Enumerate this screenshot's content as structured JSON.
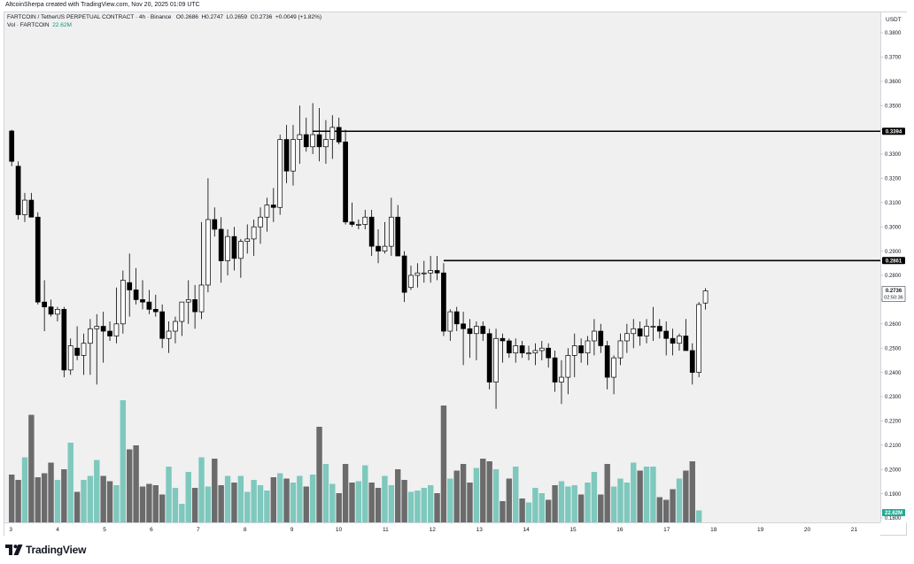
{
  "credit": "AltcoinSherpa created with TradingView.com, Nov 20, 2025 01:09 UTC",
  "legend": {
    "symbol": "FARTCOIN / TetherUS PERPETUAL CONTRACT · 4h · Binance",
    "open_label": "O",
    "open": "0.2686",
    "high_label": "H",
    "high": "0.2747",
    "low_label": "L",
    "low": "0.2659",
    "close_label": "C",
    "close": "0.2736",
    "change": "+0.0049 (+1.82%)",
    "vol_label": "Vol · FARTCOIN",
    "vol_value": "22.62M"
  },
  "price_axis_unit": "USDT",
  "brand": "TradingView",
  "chart_data": {
    "type": "candlestick",
    "symbol": "FARTCOIN / TetherUS PERPETUAL CONTRACT",
    "timeframe": "4h",
    "exchange": "Binance",
    "y_axis": {
      "unit": "USDT",
      "range": [
        0.18,
        0.385
      ],
      "ticks": [
        "0.3800",
        "0.3700",
        "0.3600",
        "0.3500",
        "0.3400",
        "0.3300",
        "0.3200",
        "0.3100",
        "0.3000",
        "0.2900",
        "0.2800",
        "0.2700",
        "0.2600",
        "0.2500",
        "0.2400",
        "0.2300",
        "0.2200",
        "0.2100",
        "0.2000",
        "0.1900",
        "0.1800"
      ]
    },
    "x_axis": {
      "ticks": [
        "3",
        "4",
        "5",
        "6",
        "7",
        "8",
        "9",
        "10",
        "11",
        "12",
        "13",
        "14",
        "15",
        "16",
        "17",
        "18",
        "19",
        "20",
        "21"
      ]
    },
    "horizontal_lines": [
      {
        "price": "0.3394",
        "from_bar": 46
      },
      {
        "price": "0.2861",
        "from_bar": 66
      }
    ],
    "labels": {
      "line1": "0.3394",
      "line2": "0.2861",
      "last_price": "0.2736",
      "countdown": "02:50:36",
      "volume_last": "22.62M"
    },
    "colors": {
      "up": "#ffffff",
      "down": "#000000",
      "vol_up": "#7ec8bd",
      "vol_down": "#6b6b6b"
    },
    "grid": false,
    "candles": [
      [
        0.3395,
        0.34,
        0.325,
        0.327
      ],
      [
        0.325,
        0.327,
        0.303,
        0.305
      ],
      [
        0.305,
        0.314,
        0.302,
        0.311
      ],
      [
        0.311,
        0.314,
        0.304,
        0.304
      ],
      [
        0.304,
        0.306,
        0.268,
        0.269
      ],
      [
        0.269,
        0.278,
        0.257,
        0.267
      ],
      [
        0.267,
        0.27,
        0.263,
        0.264
      ],
      [
        0.264,
        0.267,
        0.261,
        0.266
      ],
      [
        0.266,
        0.267,
        0.238,
        0.241
      ],
      [
        0.241,
        0.254,
        0.239,
        0.251
      ],
      [
        0.25,
        0.259,
        0.245,
        0.247
      ],
      [
        0.247,
        0.256,
        0.239,
        0.252
      ],
      [
        0.252,
        0.262,
        0.239,
        0.258
      ],
      [
        0.258,
        0.264,
        0.235,
        0.259
      ],
      [
        0.259,
        0.265,
        0.244,
        0.257
      ],
      [
        0.257,
        0.261,
        0.253,
        0.255
      ],
      [
        0.255,
        0.275,
        0.252,
        0.26
      ],
      [
        0.26,
        0.282,
        0.256,
        0.278
      ],
      [
        0.277,
        0.289,
        0.263,
        0.274
      ],
      [
        0.274,
        0.283,
        0.268,
        0.27
      ],
      [
        0.27,
        0.278,
        0.266,
        0.269
      ],
      [
        0.269,
        0.274,
        0.264,
        0.266
      ],
      [
        0.266,
        0.272,
        0.263,
        0.265
      ],
      [
        0.265,
        0.268,
        0.25,
        0.254
      ],
      [
        0.254,
        0.261,
        0.248,
        0.257
      ],
      [
        0.257,
        0.263,
        0.252,
        0.261
      ],
      [
        0.261,
        0.267,
        0.255,
        0.269
      ],
      [
        0.269,
        0.278,
        0.26,
        0.27
      ],
      [
        0.27,
        0.276,
        0.258,
        0.265
      ],
      [
        0.265,
        0.302,
        0.262,
        0.276
      ],
      [
        0.276,
        0.32,
        0.273,
        0.303
      ],
      [
        0.303,
        0.308,
        0.296,
        0.299
      ],
      [
        0.299,
        0.304,
        0.277,
        0.286
      ],
      [
        0.286,
        0.299,
        0.28,
        0.296
      ],
      [
        0.296,
        0.3,
        0.282,
        0.287
      ],
      [
        0.287,
        0.295,
        0.279,
        0.294
      ],
      [
        0.294,
        0.301,
        0.289,
        0.295
      ],
      [
        0.295,
        0.303,
        0.288,
        0.3
      ],
      [
        0.3,
        0.308,
        0.293,
        0.304
      ],
      [
        0.304,
        0.312,
        0.298,
        0.309
      ],
      [
        0.309,
        0.316,
        0.302,
        0.308
      ],
      [
        0.308,
        0.338,
        0.305,
        0.336
      ],
      [
        0.336,
        0.342,
        0.318,
        0.323
      ],
      [
        0.323,
        0.342,
        0.317,
        0.336
      ],
      [
        0.336,
        0.35,
        0.326,
        0.338
      ],
      [
        0.338,
        0.345,
        0.331,
        0.333
      ],
      [
        0.333,
        0.351,
        0.33,
        0.338
      ],
      [
        0.338,
        0.349,
        0.327,
        0.333
      ],
      [
        0.333,
        0.344,
        0.326,
        0.336
      ],
      [
        0.336,
        0.346,
        0.328,
        0.341
      ],
      [
        0.341,
        0.345,
        0.334,
        0.335
      ],
      [
        0.335,
        0.34,
        0.301,
        0.302
      ],
      [
        0.302,
        0.31,
        0.3,
        0.301
      ],
      [
        0.301,
        0.303,
        0.299,
        0.301
      ],
      [
        0.301,
        0.307,
        0.299,
        0.304
      ],
      [
        0.304,
        0.307,
        0.288,
        0.292
      ],
      [
        0.292,
        0.299,
        0.285,
        0.29
      ],
      [
        0.29,
        0.302,
        0.289,
        0.292
      ],
      [
        0.292,
        0.312,
        0.288,
        0.304
      ],
      [
        0.304,
        0.309,
        0.289,
        0.288
      ],
      [
        0.288,
        0.29,
        0.269,
        0.273
      ],
      [
        0.275,
        0.284,
        0.274,
        0.28
      ],
      [
        0.28,
        0.285,
        0.275,
        0.281
      ],
      [
        0.281,
        0.286,
        0.277,
        0.281
      ],
      [
        0.281,
        0.288,
        0.277,
        0.282
      ],
      [
        0.282,
        0.288,
        0.278,
        0.281
      ],
      [
        0.281,
        0.285,
        0.255,
        0.257
      ],
      [
        0.257,
        0.266,
        0.253,
        0.265
      ],
      [
        0.265,
        0.267,
        0.257,
        0.26
      ],
      [
        0.26,
        0.265,
        0.243,
        0.258
      ],
      [
        0.258,
        0.262,
        0.246,
        0.256
      ],
      [
        0.256,
        0.261,
        0.245,
        0.259
      ],
      [
        0.259,
        0.261,
        0.253,
        0.256
      ],
      [
        0.256,
        0.258,
        0.233,
        0.236
      ],
      [
        0.236,
        0.258,
        0.225,
        0.254
      ],
      [
        0.254,
        0.256,
        0.244,
        0.253
      ],
      [
        0.253,
        0.254,
        0.246,
        0.248
      ],
      [
        0.248,
        0.254,
        0.244,
        0.251
      ],
      [
        0.251,
        0.253,
        0.246,
        0.248
      ],
      [
        0.248,
        0.251,
        0.245,
        0.248
      ],
      [
        0.248,
        0.252,
        0.243,
        0.249
      ],
      [
        0.249,
        0.253,
        0.245,
        0.25
      ],
      [
        0.25,
        0.252,
        0.242,
        0.246
      ],
      [
        0.246,
        0.249,
        0.232,
        0.236
      ],
      [
        0.236,
        0.245,
        0.227,
        0.238
      ],
      [
        0.238,
        0.25,
        0.231,
        0.247
      ],
      [
        0.247,
        0.256,
        0.238,
        0.251
      ],
      [
        0.251,
        0.254,
        0.244,
        0.248
      ],
      [
        0.248,
        0.255,
        0.243,
        0.253
      ],
      [
        0.253,
        0.262,
        0.247,
        0.257
      ],
      [
        0.257,
        0.26,
        0.248,
        0.251
      ],
      [
        0.251,
        0.253,
        0.233,
        0.238
      ],
      [
        0.238,
        0.247,
        0.231,
        0.246
      ],
      [
        0.246,
        0.256,
        0.243,
        0.253
      ],
      [
        0.253,
        0.26,
        0.248,
        0.256
      ],
      [
        0.256,
        0.262,
        0.25,
        0.258
      ],
      [
        0.258,
        0.261,
        0.251,
        0.255
      ],
      [
        0.255,
        0.262,
        0.252,
        0.259
      ],
      [
        0.259,
        0.267,
        0.253,
        0.259
      ],
      [
        0.259,
        0.262,
        0.254,
        0.257
      ],
      [
        0.257,
        0.261,
        0.247,
        0.254
      ],
      [
        0.254,
        0.258,
        0.247,
        0.252
      ],
      [
        0.252,
        0.256,
        0.249,
        0.255
      ],
      [
        0.255,
        0.262,
        0.249,
        0.249
      ],
      [
        0.249,
        0.252,
        0.235,
        0.24
      ],
      [
        0.24,
        0.269,
        0.238,
        0.268
      ],
      [
        0.2686,
        0.2747,
        0.2659,
        0.2736
      ]
    ],
    "volume": [
      0.36,
      0.32,
      0.49,
      0.81,
      0.34,
      0.37,
      0.45,
      0.32,
      0.4,
      0.6,
      0.23,
      0.32,
      0.35,
      0.47,
      0.35,
      0.31,
      0.28,
      0.92,
      0.55,
      0.58,
      0.27,
      0.29,
      0.28,
      0.21,
      0.42,
      0.26,
      0.14,
      0.38,
      0.26,
      0.49,
      0.27,
      0.48,
      0.28,
      0.35,
      0.3,
      0.35,
      0.23,
      0.32,
      0.28,
      0.24,
      0.34,
      0.37,
      0.33,
      0.3,
      0.35,
      0.27,
      0.36,
      0.72,
      0.44,
      0.29,
      0.22,
      0.44,
      0.3,
      0.31,
      0.43,
      0.3,
      0.26,
      0.35,
      0.28,
      0.4,
      0.32,
      0.23,
      0.24,
      0.26,
      0.28,
      0.22,
      0.88,
      0.33,
      0.39,
      0.44,
      0.3,
      0.41,
      0.48,
      0.46,
      0.4,
      0.16,
      0.33,
      0.42,
      0.18,
      0.15,
      0.26,
      0.22,
      0.17,
      0.28,
      0.31,
      0.27,
      0.28,
      0.21,
      0.3,
      0.38,
      0.21,
      0.44,
      0.27,
      0.33,
      0.3,
      0.45,
      0.39,
      0.42,
      0.42,
      0.19,
      0.17,
      0.25,
      0.33,
      0.39,
      0.46,
      0.09
    ]
  }
}
